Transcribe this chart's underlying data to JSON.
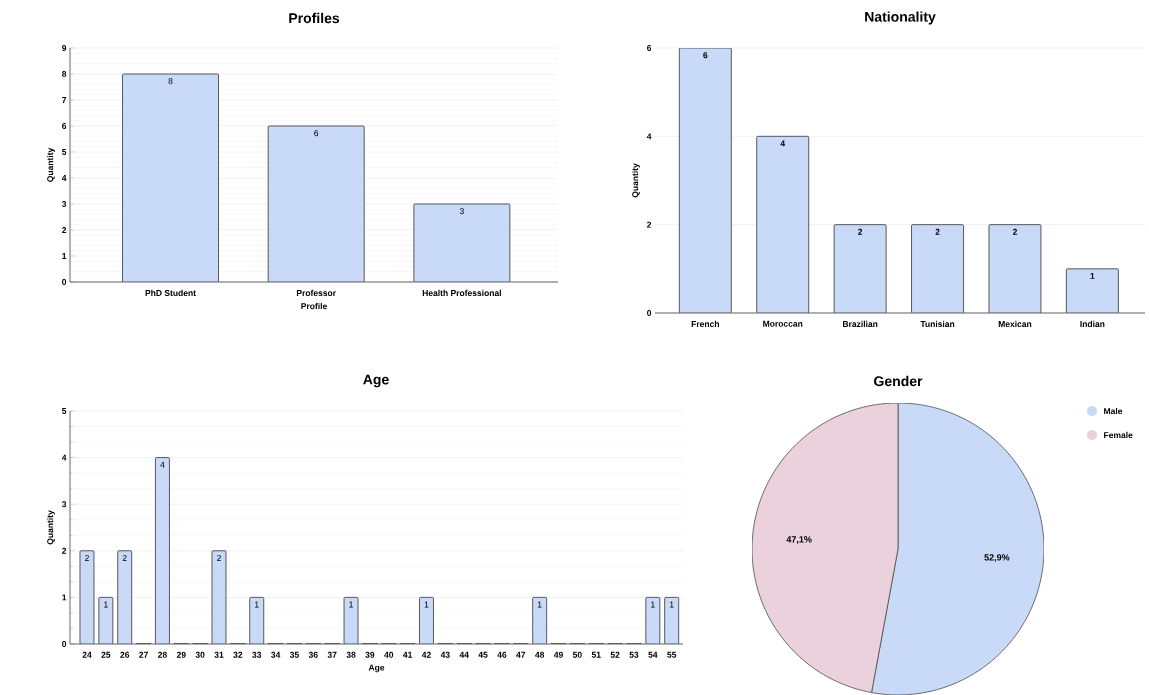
{
  "chart_data": [
    {
      "type": "bar",
      "title": "Profiles",
      "xlabel": "Profile",
      "ylabel": "Quantity",
      "categories": [
        "PhD Student",
        "Professor",
        "Health Professional"
      ],
      "values": [
        8,
        6,
        3
      ],
      "color": "#c9daf8",
      "ylim": [
        0,
        9
      ],
      "yticks": [
        0,
        1,
        2,
        3,
        4,
        5,
        6,
        7,
        8,
        9
      ],
      "grid": "y",
      "data_labels": true
    },
    {
      "type": "bar",
      "title": "Nationality",
      "ylabel": "Quantity",
      "categories": [
        "French",
        "Moroccan",
        "Brazilian",
        "Tunisian",
        "Mexican",
        "Indian"
      ],
      "values": [
        6,
        4,
        2,
        2,
        2,
        1
      ],
      "color": "#c9daf8",
      "ylim": [
        0,
        6
      ],
      "yticks": [
        0,
        2,
        4,
        6
      ],
      "grid": "y",
      "data_labels": true
    },
    {
      "type": "bar",
      "title": "Age",
      "xlabel": "Age",
      "ylabel": "Quantity",
      "categories": [
        "24",
        "25",
        "26",
        "27",
        "28",
        "29",
        "30",
        "31",
        "32",
        "33",
        "34",
        "35",
        "36",
        "37",
        "38",
        "39",
        "40",
        "41",
        "42",
        "43",
        "44",
        "45",
        "46",
        "47",
        "48",
        "49",
        "50",
        "51",
        "52",
        "53",
        "54",
        "55"
      ],
      "values": [
        2,
        1,
        2,
        0,
        4,
        0,
        0,
        2,
        0,
        1,
        0,
        0,
        0,
        0,
        1,
        0,
        0,
        0,
        1,
        0,
        0,
        0,
        0,
        0,
        1,
        0,
        0,
        0,
        0,
        0,
        1,
        1
      ],
      "value_labels": [
        "2",
        "1",
        "2",
        null,
        "4",
        null,
        null,
        "2",
        null,
        "1",
        null,
        null,
        null,
        null,
        "1",
        null,
        null,
        null,
        "1",
        null,
        null,
        null,
        null,
        null,
        "1",
        null,
        null,
        null,
        null,
        null,
        "1",
        "1"
      ],
      "color": "#c9daf8",
      "ylim": [
        0,
        5
      ],
      "yticks": [
        0,
        1,
        2,
        3,
        4,
        5
      ],
      "grid": "y"
    },
    {
      "type": "pie",
      "title": "Gender",
      "categories": [
        "Male",
        "Female"
      ],
      "values": [
        52.9,
        47.1
      ],
      "value_labels": [
        "52,9%",
        "47,1%"
      ],
      "colors": [
        "#c9daf8",
        "#ead1dc"
      ],
      "legend": "top right"
    }
  ]
}
